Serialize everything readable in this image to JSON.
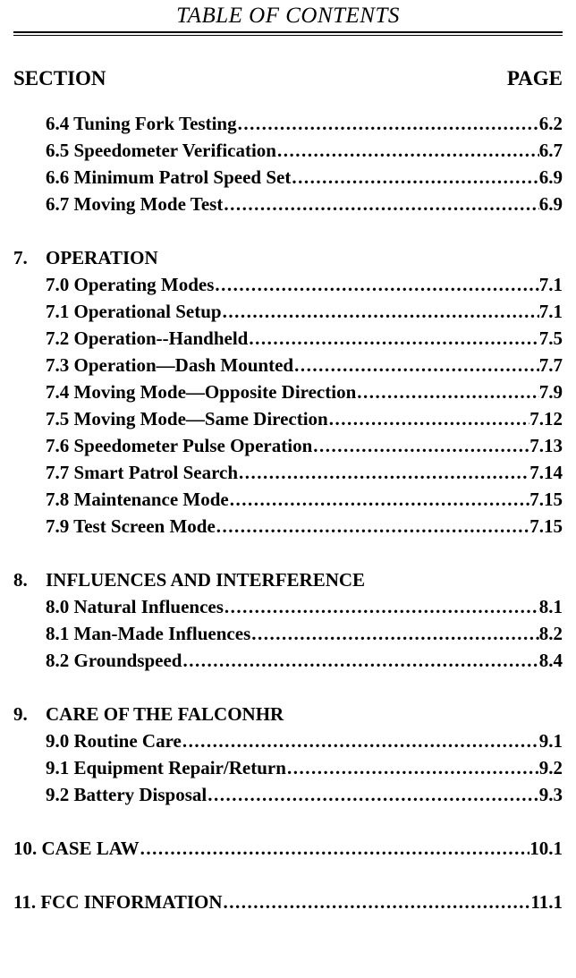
{
  "header": {
    "title": "TABLE OF CONTENTS"
  },
  "columns": {
    "left": "SECTION",
    "right": "PAGE"
  },
  "sections": [
    {
      "num": null,
      "title": null,
      "items": [
        {
          "label": "6.4  Tuning Fork Testing",
          "page": "6.2"
        },
        {
          "label": "6.5  Speedometer Verification",
          "page": "6.7"
        },
        {
          "label": "6.6  Minimum Patrol Speed Set",
          "page": "6.9"
        },
        {
          "label": "6.7  Moving Mode Test",
          "page": "6.9"
        }
      ]
    },
    {
      "num": "7.",
      "title": "OPERATION",
      "items": [
        {
          "label": "7.0  Operating Modes",
          "page": "7.1"
        },
        {
          "label": "7.1  Operational Setup",
          "page": "7.1"
        },
        {
          "label": "7.2  Operation--Handheld",
          "page": "7.5"
        },
        {
          "label": "7.3  Operation—Dash Mounted",
          "page": "7.7"
        },
        {
          "label": "7.4  Moving Mode—Opposite Direction",
          "page": "7.9"
        },
        {
          "label": "7.5  Moving Mode—Same Direction",
          "page": "7.12"
        },
        {
          "label": "7.6 Speedometer Pulse Operation",
          "page": "7.13"
        },
        {
          "label": "7.7 Smart Patrol Search",
          "page": "7.14"
        },
        {
          "label": "7.8  Maintenance Mode",
          "page": "7.15"
        },
        {
          "label": "7.9 Test Screen Mode",
          "page": "7.15"
        }
      ]
    },
    {
      "num": "8.",
      "title": "INFLUENCES AND INTERFERENCE",
      "items": [
        {
          "label": "8.0  Natural Influences",
          "page": "8.1"
        },
        {
          "label": "8.1  Man-Made Influences",
          "page": "8.2"
        },
        {
          "label": "8.2  Groundspeed",
          "page": "8.4"
        }
      ]
    },
    {
      "num": "9.",
      "title": "CARE OF THE FALCONHR",
      "items": [
        {
          "label": "9.0  Routine Care",
          "page": "9.1"
        },
        {
          "label": "9.1  Equipment Repair/Return",
          "page": "9.2"
        },
        {
          "label": "9.2  Battery Disposal",
          "page": "9.3"
        }
      ]
    },
    {
      "num": "10.",
      "title": "CASE LAW",
      "page": "10.1",
      "items": []
    },
    {
      "num": "11.",
      "title": "FCC INFORMATION",
      "page": "11.1",
      "items": []
    }
  ]
}
